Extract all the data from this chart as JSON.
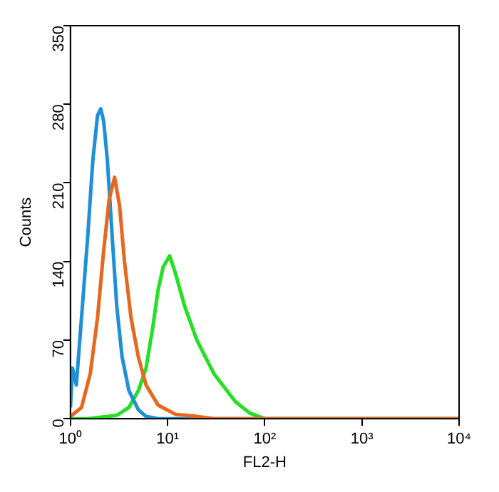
{
  "chart_data": {
    "type": "line",
    "xlabel": "FL2-H",
    "ylabel": "Counts",
    "log": "x",
    "xlim": [
      1,
      10000
    ],
    "xticks": [
      {
        "value": 1,
        "label": "10⁰"
      },
      {
        "value": 10,
        "label": "10¹"
      },
      {
        "value": 100,
        "label": "10²"
      },
      {
        "value": 1000,
        "label": "10³"
      },
      {
        "value": 10000,
        "label": "10⁴"
      }
    ],
    "ylim": [
      0,
      350
    ],
    "yticks": [
      0,
      70,
      140,
      210,
      280,
      350
    ],
    "grid": false,
    "legend": false,
    "series": [
      {
        "color": "#e8671e",
        "x": [
          1,
          1.3,
          1.6,
          1.9,
          2.2,
          2.5,
          2.85,
          3.2,
          3.6,
          4.2,
          5,
          6,
          8,
          12,
          20,
          30,
          10000
        ],
        "values": [
          2,
          10,
          40,
          90,
          150,
          195,
          215,
          190,
          140,
          90,
          55,
          30,
          12,
          4,
          2,
          0,
          0
        ]
      },
      {
        "color": "#1e90d8",
        "x": [
          1,
          1.05,
          1.15,
          1.3,
          1.5,
          1.7,
          1.9,
          2.05,
          2.2,
          2.4,
          2.7,
          3,
          3.4,
          4,
          5,
          6,
          8,
          10000
        ],
        "values": [
          10,
          45,
          30,
          90,
          160,
          230,
          270,
          276,
          265,
          230,
          160,
          100,
          55,
          25,
          8,
          2,
          0,
          0
        ]
      },
      {
        "color": "#22e022",
        "x": [
          1,
          1.5,
          3,
          4,
          5,
          6,
          7,
          8,
          9,
          10.5,
          12,
          15,
          20,
          30,
          50,
          70,
          100,
          10000
        ],
        "values": [
          0,
          0,
          3,
          10,
          25,
          45,
          80,
          115,
          135,
          145,
          130,
          100,
          70,
          40,
          15,
          5,
          0,
          0
        ]
      }
    ]
  }
}
